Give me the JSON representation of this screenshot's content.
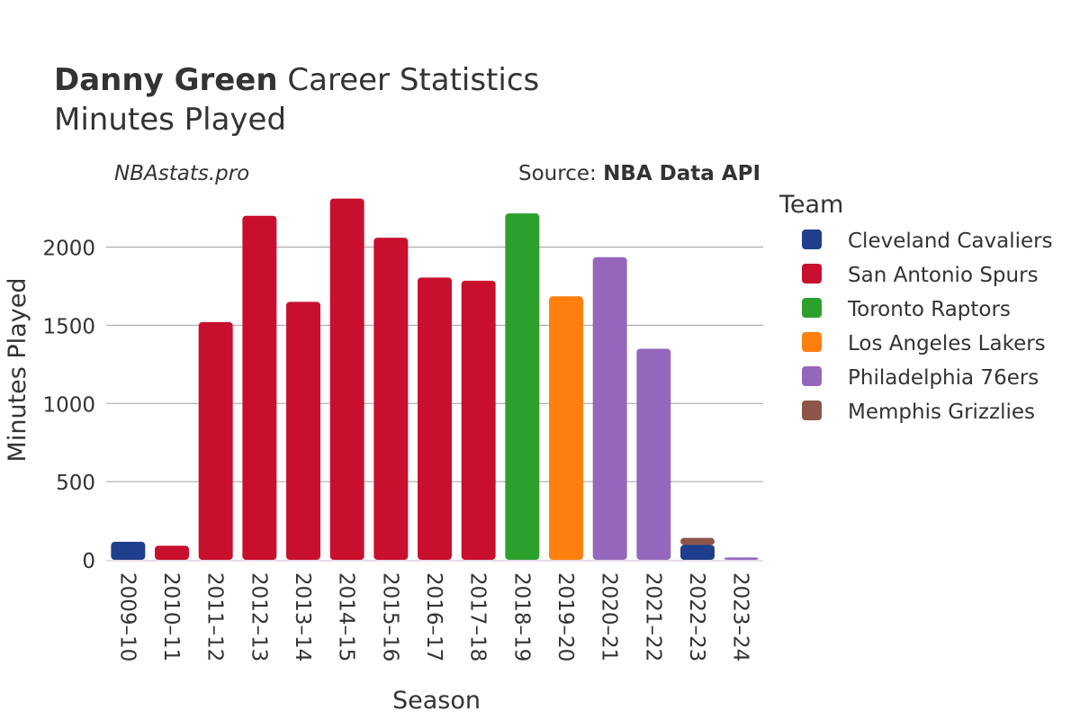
{
  "header": {
    "title_bold": "Danny Green",
    "title_rest": " Career Statistics",
    "subtitle": "Minutes Played",
    "watermark": "NBAstats.pro",
    "source_label": "Source: ",
    "source_name": "NBA Data API"
  },
  "legend": {
    "title": "Team"
  },
  "chart_data": {
    "type": "bar",
    "stacked": true,
    "title": "Danny Green Career Statistics",
    "subtitle": "Minutes Played",
    "xlabel": "Season",
    "ylabel": "Minutes Played",
    "ylim": [
      0,
      2400
    ],
    "yticks": [
      0,
      500,
      1000,
      1500,
      2000
    ],
    "grid": true,
    "legend_position": "right",
    "categories": [
      "2009–10",
      "2010–11",
      "2011–12",
      "2012–13",
      "2013–14",
      "2014–15",
      "2015–16",
      "2016–17",
      "2017–18",
      "2018–19",
      "2019–20",
      "2020–21",
      "2021–22",
      "2022–23",
      "2023–24"
    ],
    "series": [
      {
        "name": "Cleveland Cavaliers",
        "color": "#1f3f8c",
        "values": [
          115,
          0,
          0,
          0,
          0,
          0,
          0,
          0,
          0,
          0,
          0,
          0,
          0,
          95,
          0
        ]
      },
      {
        "name": "San Antonio Spurs",
        "color": "#c8102e",
        "values": [
          0,
          90,
          1520,
          2200,
          1650,
          2310,
          2060,
          1805,
          1785,
          0,
          0,
          0,
          0,
          0,
          0
        ]
      },
      {
        "name": "Toronto Raptors",
        "color": "#2ca02c",
        "values": [
          0,
          0,
          0,
          0,
          0,
          0,
          0,
          0,
          0,
          2215,
          0,
          0,
          0,
          0,
          0
        ]
      },
      {
        "name": "Los Angeles Lakers",
        "color": "#ff7f0e",
        "values": [
          0,
          0,
          0,
          0,
          0,
          0,
          0,
          0,
          0,
          0,
          1685,
          0,
          0,
          0,
          0
        ]
      },
      {
        "name": "Philadelphia 76ers",
        "color": "#9467bd",
        "values": [
          0,
          0,
          0,
          0,
          0,
          0,
          0,
          0,
          0,
          0,
          0,
          1935,
          1350,
          0,
          15
        ]
      },
      {
        "name": "Memphis Grizzlies",
        "color": "#8c564b",
        "values": [
          0,
          0,
          0,
          0,
          0,
          0,
          0,
          0,
          0,
          0,
          0,
          0,
          0,
          45,
          0
        ]
      }
    ]
  }
}
